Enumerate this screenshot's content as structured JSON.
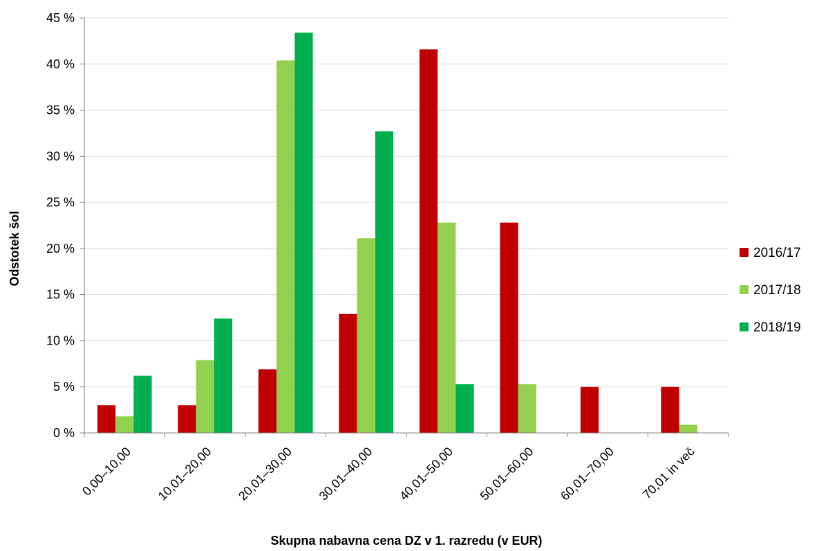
{
  "chart_data": {
    "type": "bar",
    "title": "",
    "xlabel": "Skupna nabavna cena DZ v 1. razredu (v EUR)",
    "ylabel": "Odstotek šol",
    "ylim": [
      0,
      45
    ],
    "y_ticks": [
      "0 %",
      "5 %",
      "10 %",
      "15 %",
      "20 %",
      "25 %",
      "30 %",
      "35 %",
      "40 %",
      "45 %"
    ],
    "grid": true,
    "legend_position": "right",
    "categories": [
      "0,00–10,00",
      "10,01–20,00",
      "20,01–30,00",
      "30,01–40,00",
      "40,01–50,00",
      "50,01–60,00",
      "60,01–70,00",
      "70,01 in več"
    ],
    "series": [
      {
        "name": "2016/17",
        "color": "#c00000",
        "values": [
          3.0,
          3.0,
          6.9,
          12.9,
          41.6,
          22.8,
          5.0,
          5.0
        ]
      },
      {
        "name": "2017/18",
        "color": "#92d050",
        "values": [
          1.8,
          7.9,
          40.4,
          21.1,
          22.8,
          5.3,
          0,
          0.9
        ]
      },
      {
        "name": "2018/19",
        "color": "#00b050",
        "values": [
          6.2,
          12.4,
          43.4,
          32.7,
          5.3,
          0,
          0,
          0
        ]
      }
    ]
  }
}
